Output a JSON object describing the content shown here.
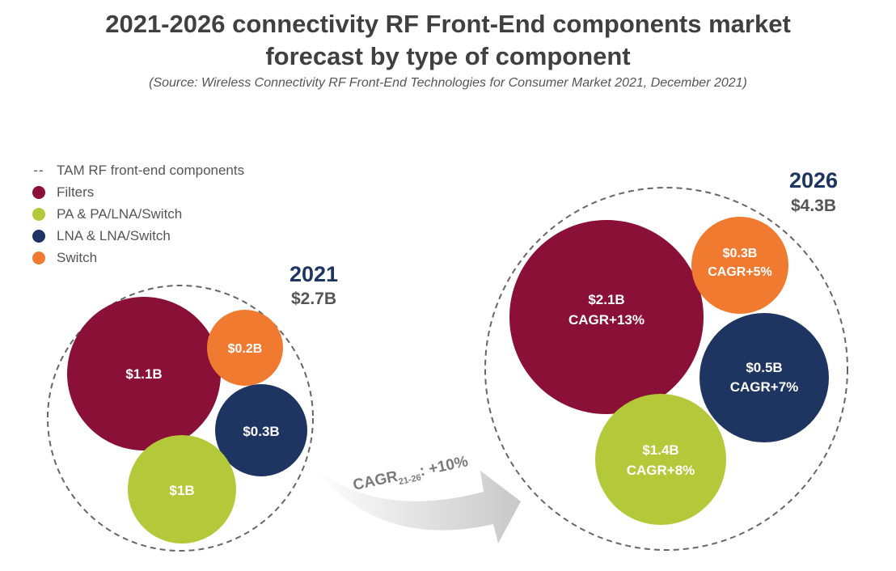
{
  "chart_data": {
    "type": "bubble",
    "title_line1": "2021-2026 connectivity RF Front-End components market",
    "title_line2": "forecast by type of component",
    "source": "(Source: Wireless Connectivity RF Front-End Technologies for Consumer Market 2021, December 2021)",
    "legend": [
      {
        "key": "tam",
        "label": "TAM RF front-end components",
        "marker": "--"
      },
      {
        "key": "filters",
        "label": "Filters",
        "color": "#8a1038"
      },
      {
        "key": "pa",
        "label": "PA & PA/LNA/Switch",
        "color": "#b4c93a"
      },
      {
        "key": "lna",
        "label": "LNA & LNA/Switch",
        "color": "#1e3461"
      },
      {
        "key": "switch",
        "label": "Switch",
        "color": "#f07a30"
      }
    ],
    "groups": [
      {
        "year": "2021",
        "total": "$2.7B",
        "bubbles": [
          {
            "key": "filters",
            "label": "$1.1B",
            "value": 1.1
          },
          {
            "key": "switch",
            "label": "$0.2B",
            "value": 0.2
          },
          {
            "key": "lna",
            "label": "$0.3B",
            "value": 0.3
          },
          {
            "key": "pa",
            "label": "$1B",
            "value": 1.0
          }
        ]
      },
      {
        "year": "2026",
        "total": "$4.3B",
        "bubbles": [
          {
            "key": "filters",
            "label": "$2.1B",
            "cagr": "CAGR+13%",
            "value": 2.1
          },
          {
            "key": "switch",
            "label": "$0.3B",
            "cagr": "CAGR+5%",
            "value": 0.3
          },
          {
            "key": "lna",
            "label": "$0.5B",
            "cagr": "CAGR+7%",
            "value": 0.5
          },
          {
            "key": "pa",
            "label": "$1.4B",
            "cagr": "CAGR+8%",
            "value": 1.4
          }
        ]
      }
    ],
    "arrow": {
      "prefix": "CAGR",
      "subscript": "21-26",
      "suffix": ": +10%"
    }
  }
}
